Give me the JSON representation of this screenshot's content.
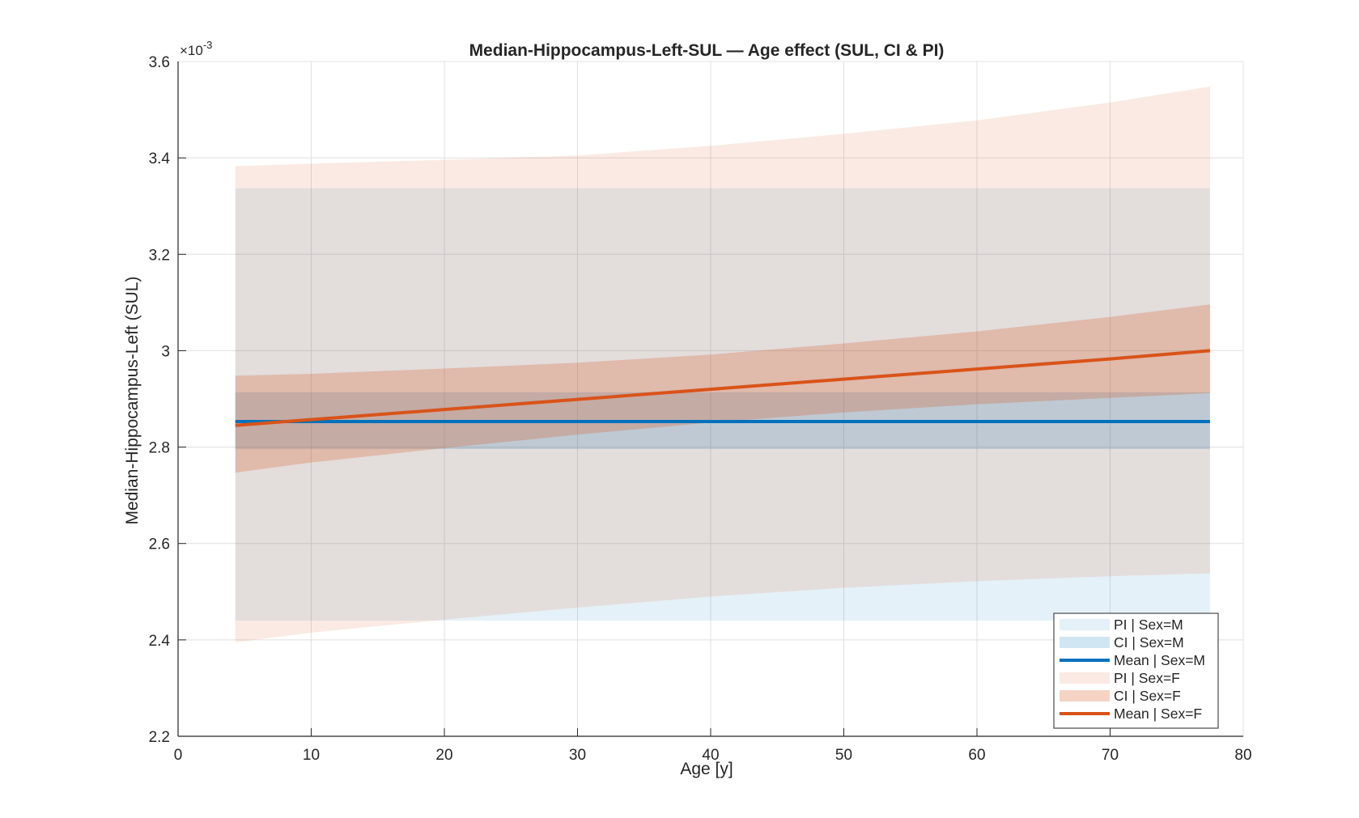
{
  "chart_data": {
    "type": "area",
    "title": "Median-Hippocampus-Left-SUL — Age effect (SUL, CI & PI)",
    "xlabel": "Age [y]",
    "ylabel": "Median-Hippocampus-Left (SUL)",
    "y_exponent_label": "×10",
    "y_exponent_power": "-3",
    "xlim": [
      0,
      80
    ],
    "ylim": [
      0.0022,
      0.0036
    ],
    "x_ticks": [
      0,
      10,
      20,
      30,
      40,
      50,
      60,
      70,
      80
    ],
    "x_tick_labels": [
      "0",
      "10",
      "20",
      "30",
      "40",
      "50",
      "60",
      "70",
      "80"
    ],
    "y_ticks": [
      0.0022,
      0.0024,
      0.0026,
      0.0028,
      0.003,
      0.0032,
      0.0034,
      0.0036
    ],
    "y_tick_labels": [
      "2.2",
      "2.4",
      "2.6",
      "2.8",
      "3",
      "3.2",
      "3.4",
      "3.6"
    ],
    "grid": true,
    "legend_position": "bottom-right",
    "x": [
      4.3,
      10,
      20,
      30,
      40,
      50,
      60,
      70,
      77.5
    ],
    "series": [
      {
        "name": "PI | Sex=M",
        "kind": "band",
        "color": "#0072bd",
        "opacity": 0.1,
        "lower": [
          0.00244,
          0.00244,
          0.00244,
          0.00244,
          0.00244,
          0.00244,
          0.00244,
          0.00244,
          0.00244
        ],
        "upper": [
          0.003337,
          0.003337,
          0.003337,
          0.003337,
          0.003337,
          0.003337,
          0.003337,
          0.003337,
          0.003337
        ]
      },
      {
        "name": "CI | Sex=M",
        "kind": "band",
        "color": "#0072bd",
        "opacity": 0.18,
        "lower": [
          0.002796,
          0.002796,
          0.002796,
          0.002796,
          0.002796,
          0.002796,
          0.002796,
          0.002796,
          0.002796
        ],
        "upper": [
          0.002914,
          0.002914,
          0.002914,
          0.002914,
          0.002914,
          0.002914,
          0.002914,
          0.002914,
          0.002914
        ]
      },
      {
        "name": "Mean | Sex=M",
        "kind": "line",
        "color": "#0072bd",
        "values": [
          0.002853,
          0.002853,
          0.002853,
          0.002853,
          0.002853,
          0.002853,
          0.002853,
          0.002853,
          0.002853
        ]
      },
      {
        "name": "PI | Sex=F",
        "kind": "band",
        "color": "#d95319",
        "opacity": 0.12,
        "lower": [
          0.002395,
          0.002415,
          0.002442,
          0.002467,
          0.00249,
          0.002508,
          0.002522,
          0.002532,
          0.002538
        ],
        "upper": [
          0.003383,
          0.003388,
          0.003396,
          0.003405,
          0.003425,
          0.00345,
          0.003478,
          0.003515,
          0.003548
        ]
      },
      {
        "name": "CI | Sex=F",
        "kind": "band",
        "color": "#d95319",
        "opacity": 0.25,
        "lower": [
          0.002747,
          0.002768,
          0.002798,
          0.002826,
          0.002851,
          0.002872,
          0.002889,
          0.002902,
          0.002912
        ],
        "upper": [
          0.002948,
          0.002952,
          0.002963,
          0.002975,
          0.002992,
          0.003015,
          0.00304,
          0.00307,
          0.003096
        ]
      },
      {
        "name": "Mean | Sex=F",
        "kind": "line",
        "color": "#d95319",
        "values": [
          0.002845,
          0.002857,
          0.002878,
          0.002899,
          0.00292,
          0.002941,
          0.002962,
          0.002983,
          0.003
        ]
      }
    ]
  }
}
